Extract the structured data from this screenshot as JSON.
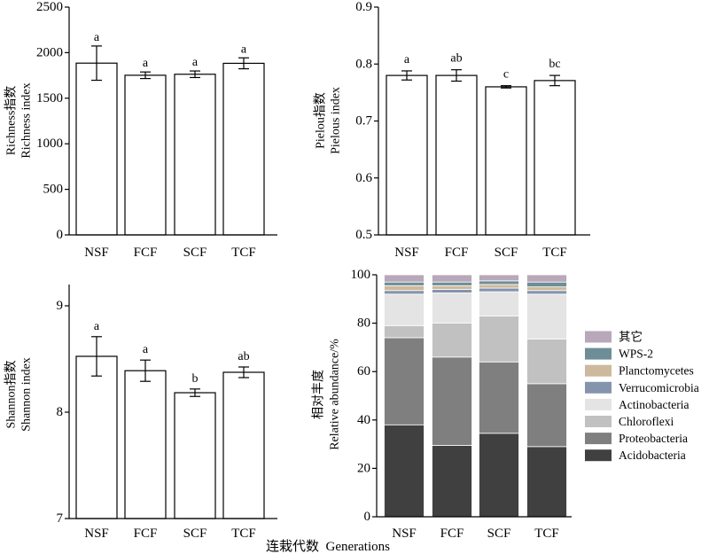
{
  "figure_xlabel": "连栽代数  Generations",
  "chart_data": [
    {
      "type": "bar",
      "categories": [
        "NSF",
        "FCF",
        "SCF",
        "TCF"
      ],
      "values": [
        1885,
        1752,
        1763,
        1883
      ],
      "errors": [
        188,
        36,
        36,
        60
      ],
      "letters": [
        "a",
        "a",
        "a",
        "a"
      ],
      "ylabel": [
        "Richness指数",
        "Richness index"
      ],
      "ylim": [
        0,
        2500
      ],
      "yticks": [
        0,
        500,
        1000,
        1500,
        2000,
        2500
      ],
      "grid": false,
      "bar_fill": "#ffffff",
      "bar_edge": "#000000"
    },
    {
      "type": "bar",
      "categories": [
        "NSF",
        "FCF",
        "SCF",
        "TCF"
      ],
      "values": [
        0.78,
        0.78,
        0.76,
        0.771
      ],
      "errors": [
        0.008,
        0.01,
        0.002,
        0.009
      ],
      "letters": [
        "a",
        "ab",
        "c",
        "bc"
      ],
      "ylabel": [
        "Pielou指数",
        "Pielous index"
      ],
      "ylim": [
        0.5,
        0.9
      ],
      "yticks": [
        0.5,
        0.6,
        0.7,
        0.8,
        0.9
      ],
      "grid": false,
      "bar_fill": "#ffffff",
      "bar_edge": "#000000"
    },
    {
      "type": "bar",
      "categories": [
        "NSF",
        "FCF",
        "SCF",
        "TCF"
      ],
      "values": [
        8.525,
        8.39,
        8.183,
        8.375
      ],
      "errors": [
        0.185,
        0.1,
        0.035,
        0.05
      ],
      "letters": [
        "a",
        "a",
        "b",
        "ab"
      ],
      "ylabel": [
        "Shannon指数",
        "Shannon index"
      ],
      "ylim": [
        7,
        9.2
      ],
      "yticks": [
        7,
        8,
        9
      ],
      "grid": false,
      "bar_fill": "#ffffff",
      "bar_edge": "#000000"
    },
    {
      "type": "bar",
      "stacked": true,
      "categories": [
        "NSF",
        "FCF",
        "SCF",
        "TCF"
      ],
      "series": [
        {
          "name": "Acidobacteria",
          "color": "#404040",
          "values": [
            38,
            29.5,
            34.5,
            29
          ]
        },
        {
          "name": "Proteobacteria",
          "color": "#7f7f7f",
          "values": [
            36,
            36.5,
            29.5,
            26
          ]
        },
        {
          "name": "Chloroflexi",
          "color": "#c1c1c1",
          "values": [
            5,
            14,
            19,
            18.5
          ]
        },
        {
          "name": "Actinobacteria",
          "color": "#e4e4e4",
          "values": [
            13,
            12.5,
            10,
            18.5
          ]
        },
        {
          "name": "Verrucomicrobia",
          "color": "#8594ad",
          "values": [
            1.5,
            1.5,
            1.5,
            1.5
          ]
        },
        {
          "name": "Planctomycetes",
          "color": "#cdb99c",
          "values": [
            2,
            1.5,
            1.5,
            1.5
          ]
        },
        {
          "name": "WPS-2",
          "color": "#6e8e97",
          "values": [
            1.5,
            1.5,
            1.5,
            2
          ]
        },
        {
          "name": "其它",
          "color": "#b8a8b9",
          "values": [
            3,
            3,
            2.5,
            3
          ]
        }
      ],
      "ylabel": [
        "相对丰度",
        "Relative abundance/%"
      ],
      "ylim": [
        0,
        100
      ],
      "yticks": [
        0,
        20,
        40,
        60,
        80,
        100
      ],
      "grid": false,
      "legend_position": "right"
    }
  ]
}
